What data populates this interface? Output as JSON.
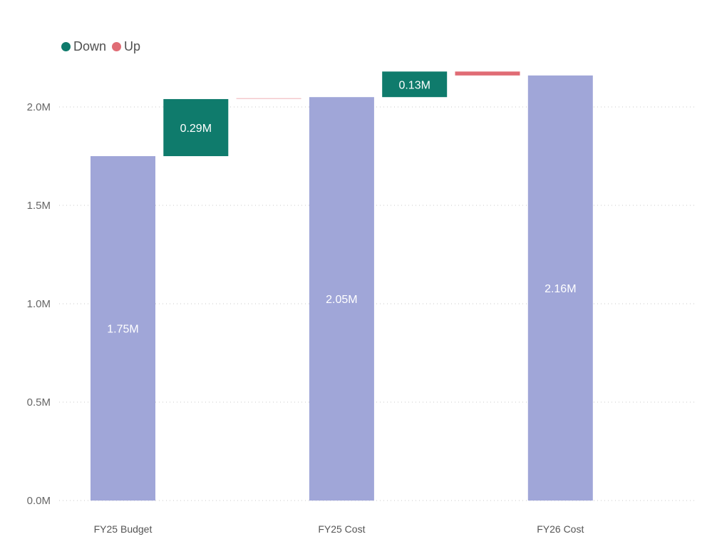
{
  "chart_data": {
    "type": "bar",
    "subtype": "waterfall",
    "title": "",
    "xlabel": "",
    "ylabel": "",
    "ylim": [
      0,
      2.2
    ],
    "y_ticks": [
      0,
      0.5,
      1.0,
      1.5,
      2.0
    ],
    "y_tick_labels": [
      "0.0M",
      "0.5M",
      "1.0M",
      "1.5M",
      "2.0M"
    ],
    "grid": true,
    "legend_position": "top-left",
    "legend": [
      {
        "name": "Down",
        "color": "#0f7b6c"
      },
      {
        "name": "Up",
        "color": "#e06c75"
      }
    ],
    "categories": [
      "FY25 Budget",
      "",
      "",
      "FY25 Cost",
      "",
      "",
      "FY26 Cost"
    ],
    "bars": [
      {
        "kind": "total",
        "category": "FY25 Budget",
        "start": 0,
        "end": 1.75,
        "label": "1.75M",
        "color": "#a0a6d8"
      },
      {
        "kind": "delta",
        "category": "",
        "start": 1.75,
        "end": 2.04,
        "label": "0.29M",
        "color": "#0f7b6c"
      },
      {
        "kind": "delta",
        "category": "",
        "start": 2.04,
        "end": 2.045,
        "label": "",
        "color": "#f4c6ca"
      },
      {
        "kind": "total",
        "category": "FY25 Cost",
        "start": 0,
        "end": 2.05,
        "label": "2.05M",
        "color": "#a0a6d8"
      },
      {
        "kind": "delta",
        "category": "",
        "start": 2.05,
        "end": 2.18,
        "label": "0.13M",
        "color": "#0f7b6c"
      },
      {
        "kind": "delta",
        "category": "",
        "start": 2.16,
        "end": 2.18,
        "label": "",
        "color": "#e06c75"
      },
      {
        "kind": "total",
        "category": "FY26 Cost",
        "start": 0,
        "end": 2.16,
        "label": "2.16M",
        "color": "#a0a6d8"
      }
    ]
  }
}
